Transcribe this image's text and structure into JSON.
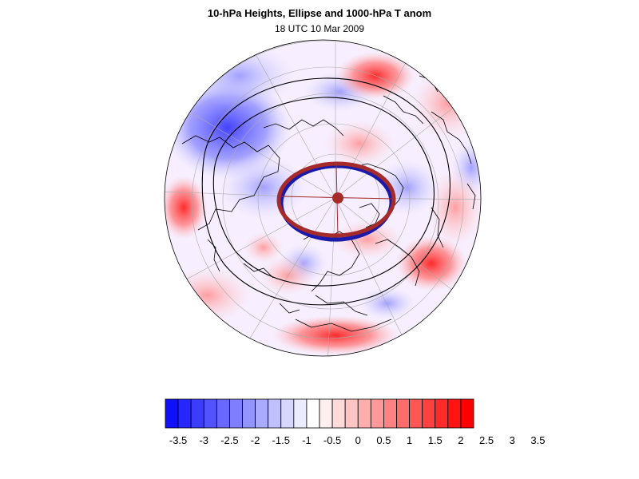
{
  "header": {
    "title": "10-hPa Heights, Ellipse and 1000-hPa T anom",
    "subtitle": "18 UTC 10 Mar 2009"
  },
  "colorbar": {
    "labels": [
      "-3.5",
      "-3",
      "-2.5",
      "-2",
      "-1.5",
      "-1",
      "-0.5",
      "0",
      "0.5",
      "1",
      "1.5",
      "2",
      "2.5",
      "3",
      "3.5"
    ],
    "colors": [
      "#1010ff",
      "#2626ff",
      "#3c3cff",
      "#5252ff",
      "#6868ff",
      "#7e7eff",
      "#9494ff",
      "#aaaaff",
      "#c0c0ff",
      "#d6d6ff",
      "#ececff",
      "#ffffff",
      "#fff0f0",
      "#ffdada",
      "#ffc4c4",
      "#ffaeae",
      "#ff9898",
      "#ff8282",
      "#ff6c6c",
      "#ff5656",
      "#ff4040",
      "#ff2a2a",
      "#ff1414",
      "#ff0000"
    ]
  },
  "map": {
    "projection": "orthographic-polar",
    "field": "1000-hPa temperature anomaly",
    "ellipse_color": "#a52a2a",
    "ellipse_inner_color": "#1a1aaa",
    "contour_color": "#000000"
  }
}
